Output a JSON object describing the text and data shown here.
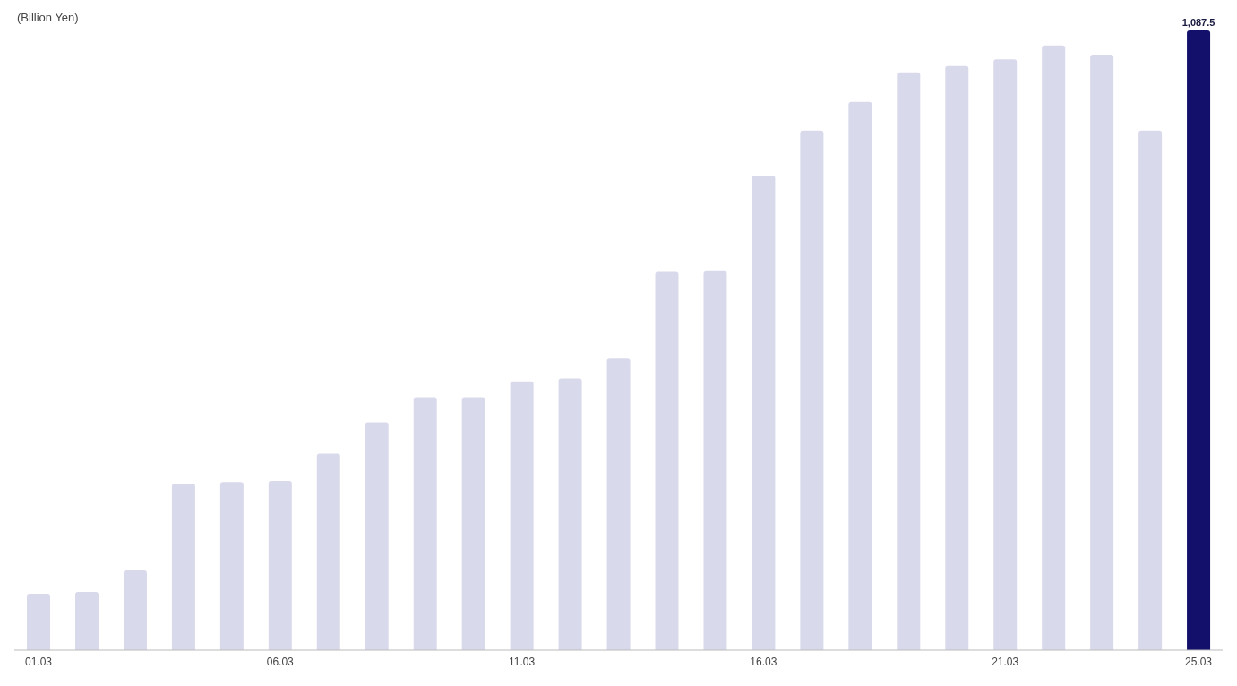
{
  "chart_data": {
    "type": "bar",
    "ylabel": "(Billion Yen)",
    "categories": [
      "01.03",
      null,
      null,
      null,
      null,
      "06.03",
      null,
      null,
      null,
      null,
      "11.03",
      null,
      null,
      null,
      null,
      "16.03",
      null,
      null,
      null,
      null,
      "21.03",
      null,
      null,
      null,
      "25.03"
    ],
    "values": [
      99,
      102,
      140,
      292,
      295,
      297,
      345,
      400,
      444,
      444,
      472,
      477,
      512,
      664,
      665,
      833,
      912,
      962,
      1014,
      1025,
      1037,
      1061,
      1045,
      912,
      1087.5
    ],
    "colors": [
      "#d9d9ec",
      "#d9d9ec",
      "#d9d9ec",
      "#d9d9ec",
      "#d9d9ec",
      "#d9d9ec",
      "#d9d9ec",
      "#d9d9ec",
      "#d9d9ec",
      "#d9d9ec",
      "#d9d9ec",
      "#d9d9ec",
      "#d9d9ec",
      "#d9d9ec",
      "#d9d9ec",
      "#d9d9ec",
      "#d9d9ec",
      "#d9d9ec",
      "#d9d9ec",
      "#d9d9ec",
      "#d9d9ec",
      "#d9d9ec",
      "#d9d9ec",
      "#d9d9ec",
      "#12106a"
    ],
    "value_labels": [
      null,
      null,
      null,
      null,
      null,
      null,
      null,
      null,
      null,
      null,
      null,
      null,
      null,
      null,
      null,
      null,
      null,
      null,
      null,
      null,
      null,
      null,
      null,
      null,
      "1,087.5"
    ],
    "grid": false,
    "legend": false
  }
}
